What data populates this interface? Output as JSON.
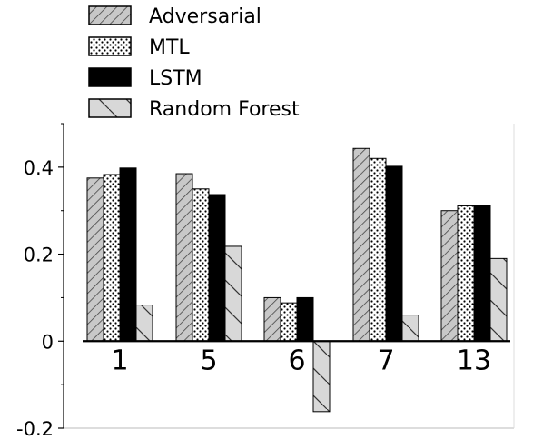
{
  "chart_data": {
    "type": "bar",
    "title": "",
    "xlabel": "",
    "ylabel": "",
    "categories": [
      "1",
      "5",
      "6",
      "7",
      "13"
    ],
    "ylim": [
      -0.2,
      0.5
    ],
    "yticks": [
      -0.2,
      0,
      0.2,
      0.4
    ],
    "ytick_labels": [
      "-0.2",
      "0",
      "0.2",
      "0.4"
    ],
    "grid": false,
    "legend_position": "top",
    "series": [
      {
        "name": "Adversarial",
        "values": [
          0.375,
          0.385,
          0.1,
          0.443,
          0.3
        ],
        "color": "#c8c8c8",
        "pattern": "diagonal-hatch"
      },
      {
        "name": "MTL",
        "values": [
          0.383,
          0.35,
          0.088,
          0.42,
          0.311
        ],
        "color": "#ffffff",
        "pattern": "dots"
      },
      {
        "name": "LSTM",
        "values": [
          0.398,
          0.337,
          0.1,
          0.402,
          0.311
        ],
        "color": "#000000",
        "pattern": "solid"
      },
      {
        "name": "Random Forest",
        "values": [
          0.083,
          0.218,
          -0.162,
          0.06,
          0.19
        ],
        "color": "#d8d8d8",
        "pattern": "sparse-backslash"
      }
    ]
  }
}
